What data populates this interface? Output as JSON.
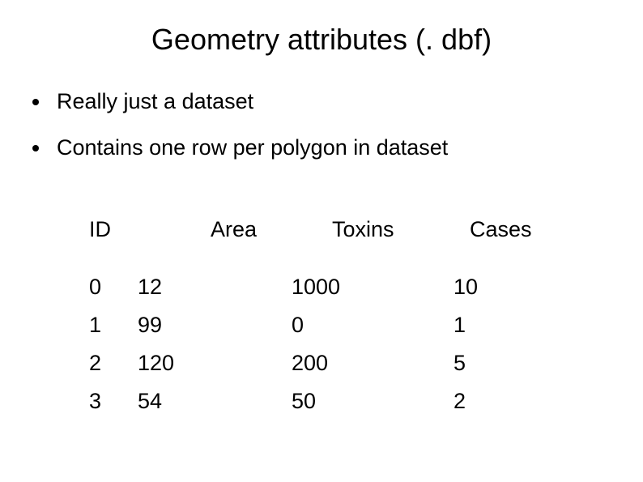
{
  "title": "Geometry attributes (. dbf)",
  "bullets": [
    "Really just a dataset",
    "Contains one row per polygon in dataset"
  ],
  "table": {
    "type": "table",
    "columns": [
      "ID",
      "Area",
      "Toxins",
      "Cases"
    ],
    "rows": [
      [
        "0",
        "12",
        "1000",
        "10"
      ],
      [
        "1",
        "99",
        "0",
        "1"
      ],
      [
        "2",
        "120",
        "200",
        "5"
      ],
      [
        "3",
        "54",
        "50",
        "2"
      ]
    ],
    "header_fontsize": 27,
    "cell_fontsize": 27,
    "text_color": "#000000",
    "background_color": "#ffffff"
  },
  "colors": {
    "background": "#ffffff",
    "text": "#000000",
    "bullet": "#000000"
  },
  "typography": {
    "title_fontsize": 36,
    "body_fontsize": 27,
    "font_family": "Arial"
  }
}
